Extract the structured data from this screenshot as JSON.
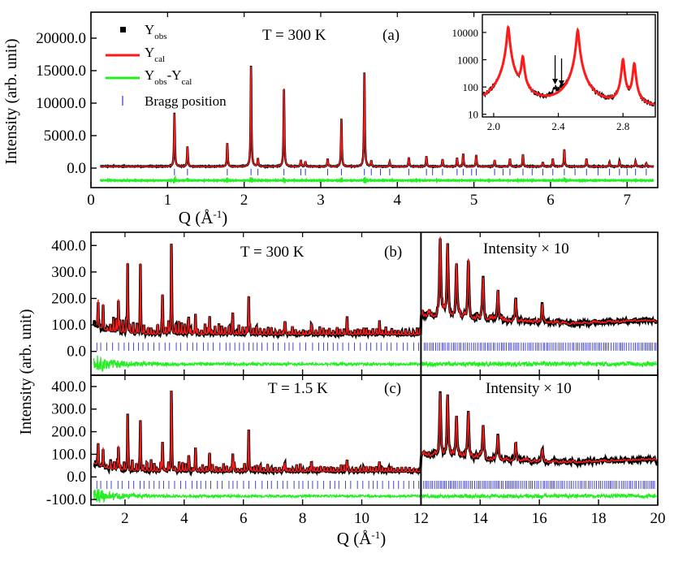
{
  "colors": {
    "obs": "#000000",
    "cal": "#ff1a1a",
    "diff": "#22ee22",
    "bragg": "#3333cc",
    "axis": "#000000"
  },
  "chart_data": [
    {
      "id": "a",
      "type": "line",
      "panel_label": "(a)",
      "annotation": "T = 300 K",
      "xlabel": "Q (Å",
      "xlabel_sup": "-1",
      "xlabel_close": ")",
      "ylabel": "Intensity (arb. unit)",
      "xlim": [
        0,
        7.4
      ],
      "ylim": [
        -3000,
        24000
      ],
      "xticks": [
        0,
        1,
        2,
        3,
        4,
        5,
        6,
        7
      ],
      "yticks": [
        0,
        5000,
        10000,
        15000,
        20000
      ],
      "ytick_labels": [
        "0.0",
        "5000.0",
        "10000.0",
        "15000.0",
        "20000.0"
      ],
      "legend": {
        "position": "top-left",
        "entries": [
          {
            "series": "obs",
            "label": "Y",
            "sub": "obs"
          },
          {
            "series": "cal",
            "label": "Y",
            "sub": "cal"
          },
          {
            "series": "diff",
            "label": "Y",
            "sub": "obs",
            "label2": "-Y",
            "sub2": "cal"
          },
          {
            "series": "bragg",
            "label": "Bragg position"
          }
        ]
      },
      "baseline": 250,
      "diff_offset": -1900,
      "bragg_level": -600,
      "peaks": [
        {
          "x": 1.09,
          "y": 8100
        },
        {
          "x": 1.26,
          "y": 3100
        },
        {
          "x": 1.78,
          "y": 3600
        },
        {
          "x": 2.09,
          "y": 15400
        },
        {
          "x": 2.18,
          "y": 1200
        },
        {
          "x": 2.52,
          "y": 12000
        },
        {
          "x": 2.74,
          "y": 1000
        },
        {
          "x": 2.8,
          "y": 800
        },
        {
          "x": 3.09,
          "y": 1200
        },
        {
          "x": 3.27,
          "y": 7300
        },
        {
          "x": 3.57,
          "y": 14400
        },
        {
          "x": 3.66,
          "y": 900
        },
        {
          "x": 3.9,
          "y": 700
        },
        {
          "x": 4.15,
          "y": 1400
        },
        {
          "x": 4.38,
          "y": 1600
        },
        {
          "x": 4.59,
          "y": 1100
        },
        {
          "x": 4.78,
          "y": 1300
        },
        {
          "x": 4.86,
          "y": 2000
        },
        {
          "x": 5.03,
          "y": 1800
        },
        {
          "x": 5.27,
          "y": 1000
        },
        {
          "x": 5.47,
          "y": 1200
        },
        {
          "x": 5.64,
          "y": 1900
        },
        {
          "x": 5.9,
          "y": 700
        },
        {
          "x": 6.03,
          "y": 1200
        },
        {
          "x": 6.18,
          "y": 2600
        },
        {
          "x": 6.47,
          "y": 1200
        },
        {
          "x": 6.77,
          "y": 700
        },
        {
          "x": 6.9,
          "y": 900
        },
        {
          "x": 7.11,
          "y": 800
        },
        {
          "x": 7.25,
          "y": 500
        }
      ],
      "bragg": [
        1.09,
        1.26,
        1.78,
        2.09,
        2.18,
        2.52,
        2.74,
        2.8,
        3.09,
        3.27,
        3.57,
        3.66,
        3.78,
        3.9,
        4.15,
        4.38,
        4.46,
        4.59,
        4.78,
        4.86,
        4.97,
        5.03,
        5.27,
        5.38,
        5.47,
        5.64,
        5.76,
        5.9,
        6.03,
        6.18,
        6.32,
        6.47,
        6.62,
        6.77,
        6.9,
        7.0,
        7.11,
        7.25
      ]
    },
    {
      "id": "inset",
      "type": "line",
      "scale": "log",
      "xlim": [
        1.93,
        3.0
      ],
      "ylim": [
        8,
        45000
      ],
      "xticks": [
        2.0,
        2.4,
        2.8
      ],
      "xtick_labels": [
        "2.0",
        "2.4",
        "2.8"
      ],
      "yticks": [
        10,
        100,
        1000,
        10000
      ],
      "ytick_labels": [
        "10",
        "100",
        "1000",
        "10000"
      ],
      "baseline": 16,
      "peaks": [
        {
          "x": 2.09,
          "y": 15400
        },
        {
          "x": 2.18,
          "y": 1200
        },
        {
          "x": 2.52,
          "y": 12000
        },
        {
          "x": 2.8,
          "y": 1000
        },
        {
          "x": 2.87,
          "y": 700
        }
      ],
      "weak_peaks": [
        {
          "x": 2.38,
          "y": 40
        },
        {
          "x": 2.42,
          "y": 28
        }
      ],
      "arrows": [
        2.38,
        2.42
      ]
    },
    {
      "id": "b",
      "type": "line",
      "panel_label": "(b)",
      "annotation": "T = 300 K",
      "note": "Intensity × 10",
      "xlim": [
        0.85,
        20
      ],
      "ylim": [
        -90,
        450
      ],
      "split": 12,
      "yticks": [
        0,
        100,
        200,
        300,
        400
      ],
      "ytick_labels": [
        "0.0",
        "100.0",
        "200.0",
        "300.0",
        "400.0"
      ],
      "baseline": 62,
      "diff_offset": -48,
      "bragg_level": 18,
      "peaks": [
        {
          "x": 1.09,
          "y": 120
        },
        {
          "x": 1.26,
          "y": 100
        },
        {
          "x": 1.78,
          "y": 130
        },
        {
          "x": 2.09,
          "y": 265
        },
        {
          "x": 2.52,
          "y": 270
        },
        {
          "x": 3.27,
          "y": 170
        },
        {
          "x": 3.57,
          "y": 390
        },
        {
          "x": 4.15,
          "y": 70
        },
        {
          "x": 4.38,
          "y": 80
        },
        {
          "x": 4.86,
          "y": 70
        },
        {
          "x": 5.64,
          "y": 80
        },
        {
          "x": 6.18,
          "y": 150
        },
        {
          "x": 7.4,
          "y": 55
        },
        {
          "x": 8.3,
          "y": 50
        },
        {
          "x": 9.5,
          "y": 60
        },
        {
          "x": 10.6,
          "y": 40
        }
      ],
      "hi_peaks": [
        {
          "x": 12.65,
          "y": 300
        },
        {
          "x": 12.9,
          "y": 280
        },
        {
          "x": 13.2,
          "y": 190
        },
        {
          "x": 13.6,
          "y": 230
        },
        {
          "x": 14.1,
          "y": 150
        },
        {
          "x": 14.6,
          "y": 120
        },
        {
          "x": 15.2,
          "y": 90
        },
        {
          "x": 16.1,
          "y": 70
        }
      ]
    },
    {
      "id": "c",
      "type": "line",
      "panel_label": "(c)",
      "annotation": "T = 1.5 K",
      "note": "Intensity × 10",
      "xlabel": "Q (Å",
      "xlabel_sup": "-1",
      "xlabel_close": ")",
      "ylabel": "Intensity (arb. unit)",
      "xlim": [
        0.85,
        20
      ],
      "ylim": [
        -125,
        450
      ],
      "split": 12,
      "xticks": [
        2,
        4,
        6,
        8,
        10,
        12,
        14,
        16,
        18,
        20
      ],
      "yticks": [
        -100,
        0,
        100,
        200,
        300,
        400
      ],
      "ytick_labels": [
        "-100.0",
        "0.0",
        "100.0",
        "200.0",
        "300.0",
        "400.0"
      ],
      "baseline": 22,
      "diff_offset": -85,
      "bragg_level": -35,
      "peaks": [
        {
          "x": 1.09,
          "y": 110
        },
        {
          "x": 1.26,
          "y": 90
        },
        {
          "x": 1.78,
          "y": 110
        },
        {
          "x": 2.09,
          "y": 235
        },
        {
          "x": 2.52,
          "y": 230
        },
        {
          "x": 3.27,
          "y": 150
        },
        {
          "x": 3.57,
          "y": 380
        },
        {
          "x": 4.15,
          "y": 70
        },
        {
          "x": 4.38,
          "y": 90
        },
        {
          "x": 4.86,
          "y": 70
        },
        {
          "x": 5.64,
          "y": 80
        },
        {
          "x": 6.18,
          "y": 190
        },
        {
          "x": 7.4,
          "y": 50
        },
        {
          "x": 8.3,
          "y": 55
        },
        {
          "x": 9.5,
          "y": 65
        },
        {
          "x": 10.6,
          "y": 40
        }
      ],
      "hi_peaks": [
        {
          "x": 12.65,
          "y": 270
        },
        {
          "x": 12.9,
          "y": 250
        },
        {
          "x": 13.2,
          "y": 160
        },
        {
          "x": 13.6,
          "y": 200
        },
        {
          "x": 14.1,
          "y": 140
        },
        {
          "x": 14.6,
          "y": 110
        },
        {
          "x": 15.2,
          "y": 80
        },
        {
          "x": 16.1,
          "y": 60
        }
      ]
    }
  ]
}
